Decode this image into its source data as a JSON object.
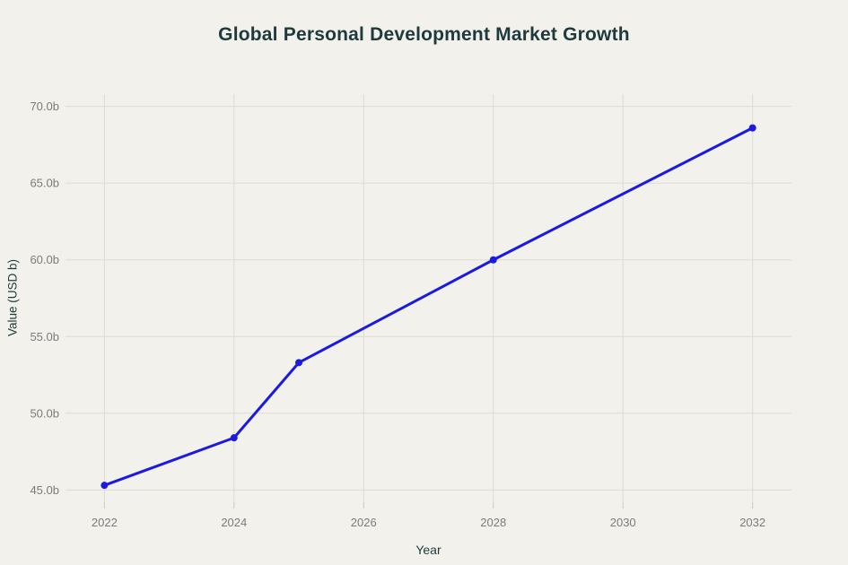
{
  "chart_data": {
    "type": "line",
    "title": "Global Personal Development Market Growth",
    "xlabel": "Year",
    "ylabel": "Value (USD b)",
    "x": [
      2022,
      2024,
      2025,
      2028,
      2032
    ],
    "y": [
      45.3,
      48.4,
      53.3,
      60.0,
      68.6
    ],
    "x_ticks": [
      {
        "value": 2022,
        "label": "2022"
      },
      {
        "value": 2024,
        "label": "2024"
      },
      {
        "value": 2026,
        "label": "2026"
      },
      {
        "value": 2028,
        "label": "2028"
      },
      {
        "value": 2030,
        "label": "2030"
      },
      {
        "value": 2032,
        "label": "2032"
      }
    ],
    "y_ticks": [
      {
        "value": 45,
        "label": "45.0b"
      },
      {
        "value": 50,
        "label": "50.0b"
      },
      {
        "value": 55,
        "label": "55.0b"
      },
      {
        "value": 60,
        "label": "60.0b"
      },
      {
        "value": 65,
        "label": "65.0b"
      },
      {
        "value": 70,
        "label": "70.0b"
      }
    ],
    "xlim": [
      2021.4,
      2032.6
    ],
    "ylim": [
      44.2,
      70.8
    ],
    "grid": true,
    "legend": "none",
    "line_color": "#1a1ae0",
    "marker_color": "#1a1ae0",
    "background_color": "#f2f1ec",
    "grid_color": "#dcdcd5",
    "tick_mark_color": "#c9c9c2",
    "tick_label_color": "#7b7b7b",
    "title_color": "#1e3a3c",
    "axis_title_color": "#1e3a3c"
  }
}
